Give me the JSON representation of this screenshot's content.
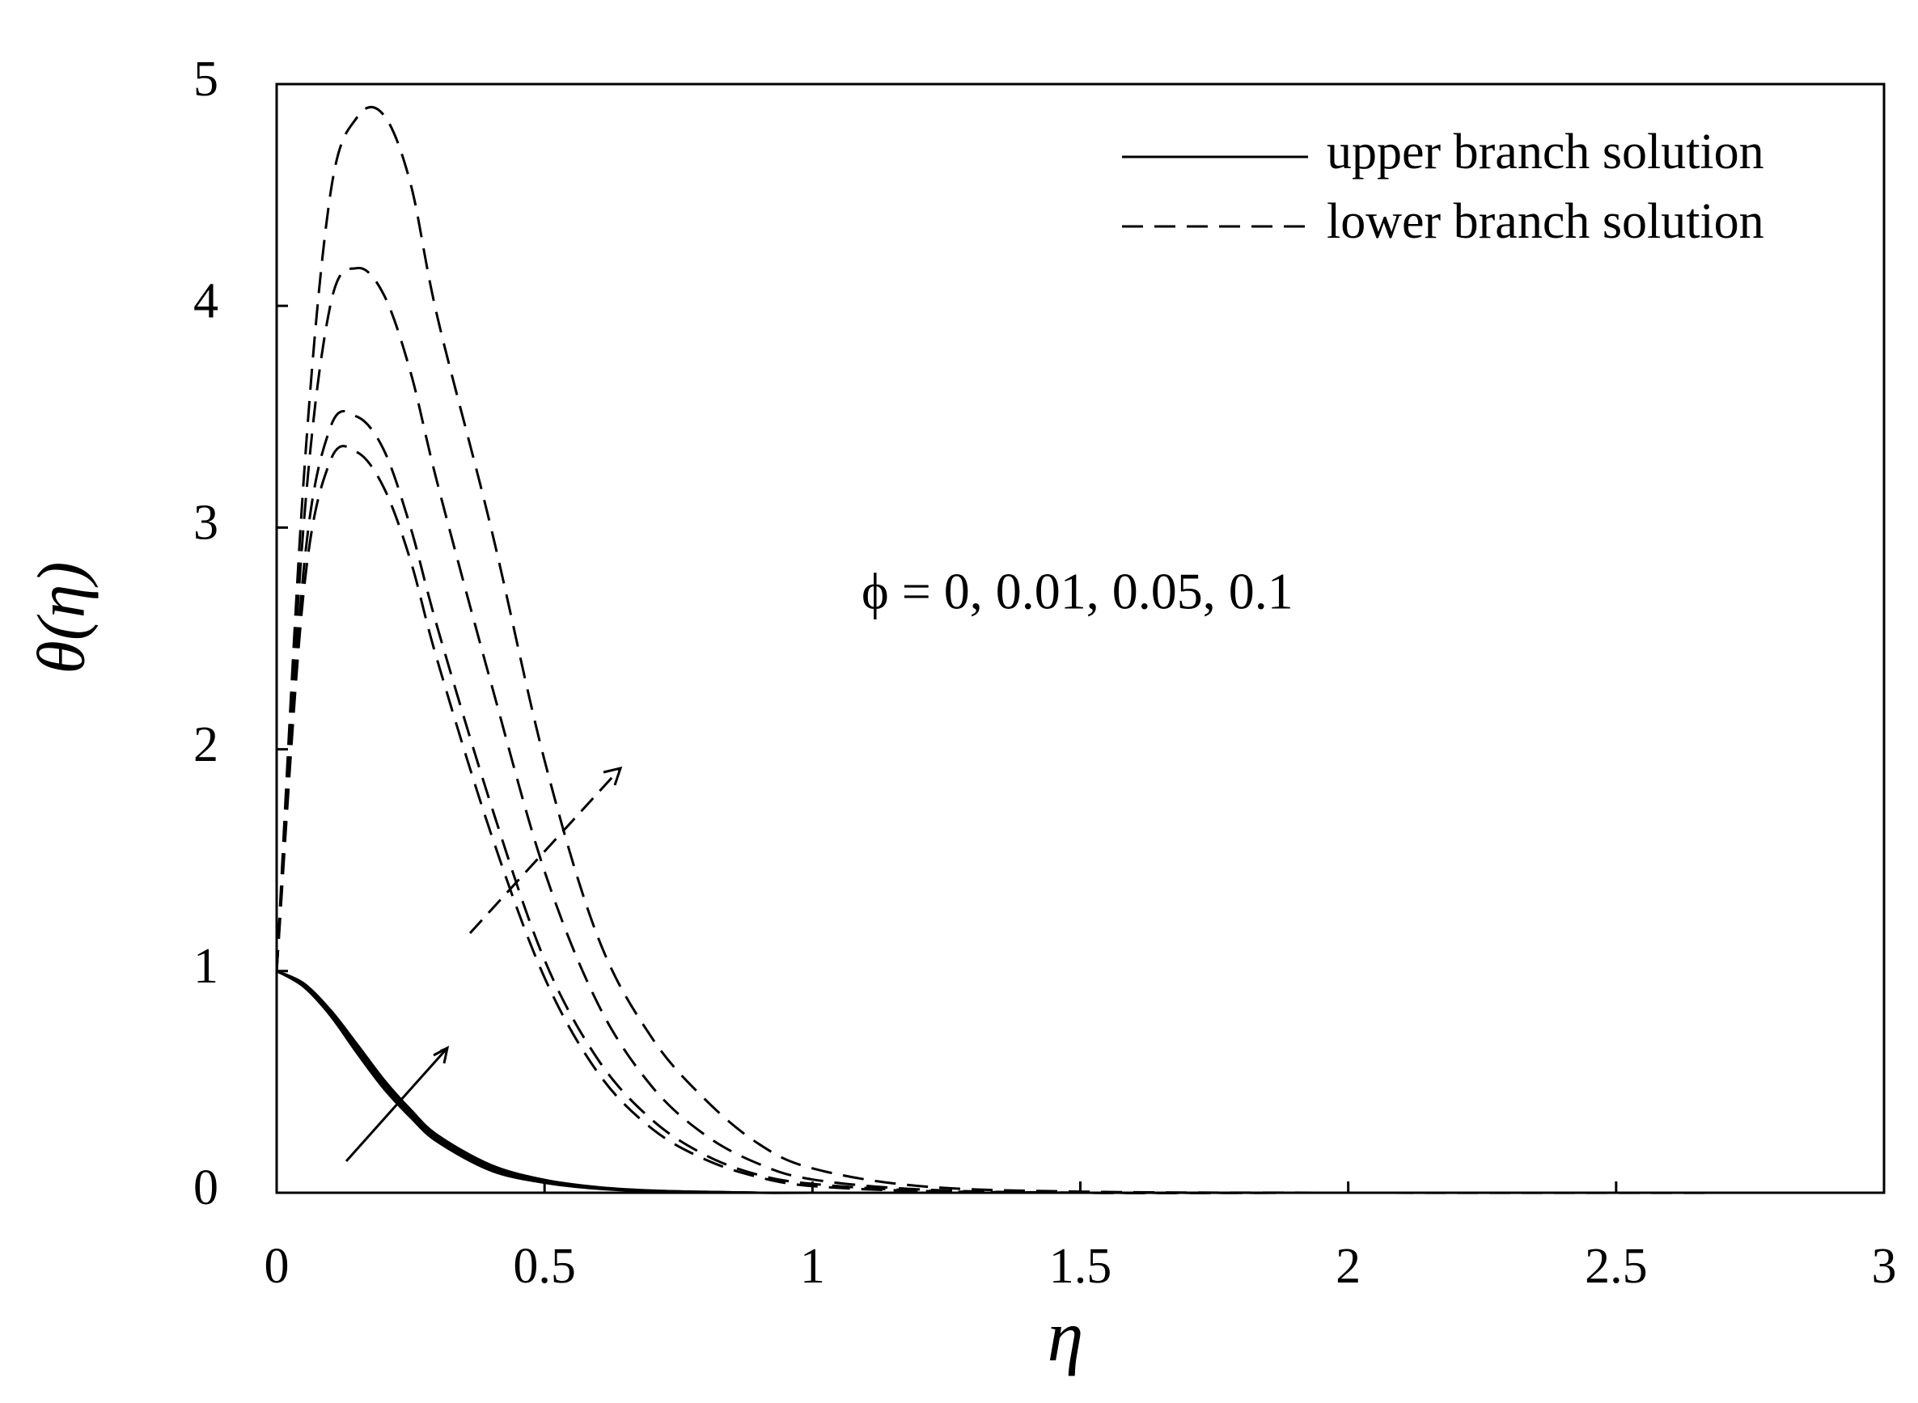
{
  "chart_data": {
    "type": "line",
    "xlabel": "η",
    "ylabel": "θ(η)",
    "annotation": "ϕ = 0, 0.01, 0.05, 0.1",
    "x": [
      0,
      0.05,
      0.1,
      0.15,
      0.2,
      0.25,
      0.3,
      0.4,
      0.5,
      0.6,
      0.7,
      0.8,
      0.9,
      1,
      1.2,
      1.5,
      2,
      3
    ],
    "legend": [
      {
        "name": "upper branch solution",
        "style": "solid"
      },
      {
        "name": "lower branch solution",
        "style": "dashed"
      }
    ],
    "series": [
      {
        "style": "solid",
        "color": "#000000",
        "values": [
          1,
          0.93,
          0.8,
          0.63,
          0.47,
          0.34,
          0.23,
          0.1,
          0.045,
          0.018,
          0.007,
          0.003,
          0,
          0,
          0,
          0,
          0,
          0
        ]
      },
      {
        "style": "solid",
        "color": "#000000",
        "values": [
          1,
          0.935,
          0.805,
          0.64,
          0.48,
          0.35,
          0.24,
          0.11,
          0.05,
          0.02,
          0.008,
          0.003,
          0,
          0,
          0,
          0,
          0,
          0
        ]
      },
      {
        "style": "solid",
        "color": "#000000",
        "values": [
          1,
          0.94,
          0.815,
          0.655,
          0.495,
          0.36,
          0.25,
          0.115,
          0.053,
          0.022,
          0.009,
          0.004,
          0,
          0,
          0,
          0,
          0,
          0
        ]
      },
      {
        "style": "solid",
        "color": "#000000",
        "values": [
          1,
          0.945,
          0.825,
          0.67,
          0.51,
          0.375,
          0.26,
          0.125,
          0.058,
          0.025,
          0.01,
          0.004,
          0,
          0,
          0,
          0,
          0,
          0
        ]
      },
      {
        "style": "dashed",
        "color": "#000000",
        "values": [
          1,
          2.7,
          3.3,
          3.34,
          3.18,
          2.85,
          2.4,
          1.62,
          0.97,
          0.54,
          0.29,
          0.15,
          0.07,
          0.03,
          0.008,
          0,
          0,
          0
        ]
      },
      {
        "style": "dashed",
        "color": "#000000",
        "values": [
          1,
          2.8,
          3.45,
          3.5,
          3.35,
          3.0,
          2.55,
          1.75,
          1.05,
          0.6,
          0.33,
          0.17,
          0.08,
          0.04,
          0.01,
          0,
          0,
          0
        ]
      },
      {
        "style": "dashed",
        "color": "#000000",
        "values": [
          1,
          3.0,
          4.0,
          4.17,
          4.05,
          3.7,
          3.2,
          2.3,
          1.45,
          0.85,
          0.48,
          0.26,
          0.13,
          0.06,
          0.015,
          0,
          0,
          0
        ]
      },
      {
        "style": "dashed",
        "color": "#000000",
        "values": [
          1,
          3.2,
          4.5,
          4.85,
          4.86,
          4.55,
          3.95,
          3.0,
          1.95,
          1.15,
          0.7,
          0.42,
          0.22,
          0.11,
          0.03,
          0.005,
          0,
          0
        ]
      }
    ],
    "xlim": [
      0,
      3
    ],
    "xticks": [
      0,
      0.5,
      1,
      1.5,
      2,
      2.5,
      3
    ],
    "ylim": [
      0,
      5
    ],
    "yticks": [
      0,
      1,
      2,
      3,
      4,
      5
    ]
  }
}
